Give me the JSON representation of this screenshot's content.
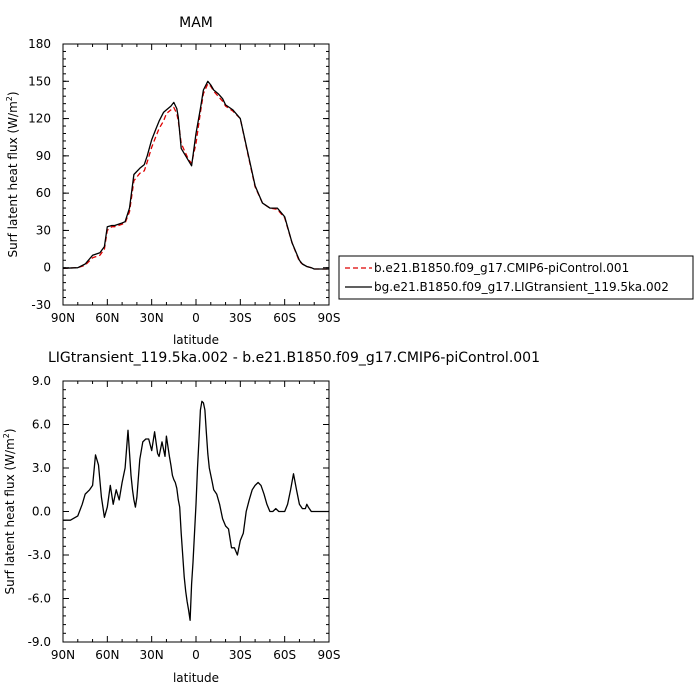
{
  "chart_data": [
    {
      "type": "line",
      "title": "MAM",
      "xlabel": "latitude",
      "ylabel": "Surf latent heat flux (W/m",
      "ylabel_sup": "2",
      "ylabel_close": ")",
      "xlim": [
        90,
        -90
      ],
      "ylim": [
        -30,
        180
      ],
      "xticks": [
        90,
        60,
        30,
        0,
        -30,
        -60,
        -90
      ],
      "xticklabels": [
        "90N",
        "60N",
        "30N",
        "0",
        "30S",
        "60S",
        "90S"
      ],
      "yticks": [
        -30,
        0,
        30,
        60,
        90,
        120,
        150,
        180
      ],
      "yticklabels": [
        "-30",
        "0",
        "30",
        "60",
        "90",
        "120",
        "150",
        "180"
      ],
      "legend_position": "right, outside plot",
      "series": [
        {
          "name": "b.e21.B1850.f09_g17.CMIP6-piControl.001",
          "color": "#dd0000",
          "dash": "dashed",
          "x": [
            90,
            80,
            75,
            70,
            65,
            62,
            60,
            57,
            55,
            50,
            48,
            45,
            42,
            38,
            35,
            33,
            30,
            27,
            25,
            22,
            20,
            17,
            15,
            13,
            12,
            10,
            7,
            5,
            3,
            0,
            -3,
            -5,
            -8,
            -10,
            -12,
            -15,
            -18,
            -20,
            -25,
            -30,
            -35,
            -40,
            -45,
            -50,
            -55,
            -60,
            -65,
            -70,
            -72,
            -75,
            -78,
            -80,
            -85,
            -90
          ],
          "y": [
            -0.5,
            0,
            2,
            8,
            10,
            15,
            30,
            33,
            33,
            35,
            36,
            45,
            70,
            76,
            78,
            85,
            97,
            106,
            112,
            118,
            124,
            127,
            129,
            124,
            118,
            100,
            92,
            87,
            84,
            100,
            125,
            140,
            148,
            146,
            142,
            138,
            134,
            130,
            126,
            120,
            92,
            65,
            52,
            48,
            47,
            40,
            20,
            5,
            3,
            1,
            0,
            -1,
            -1,
            -1
          ]
        },
        {
          "name": "bg.e21.B1850.f09_g17.LIGtransient_119.5ka.002",
          "color": "#000000",
          "dash": "solid",
          "x": [
            90,
            80,
            75,
            70,
            65,
            62,
            60,
            57,
            55,
            50,
            48,
            45,
            42,
            38,
            35,
            33,
            30,
            27,
            25,
            22,
            20,
            17,
            15,
            13,
            12,
            10,
            7,
            5,
            3,
            0,
            -3,
            -5,
            -8,
            -10,
            -12,
            -15,
            -18,
            -20,
            -25,
            -30,
            -35,
            -40,
            -45,
            -50,
            -55,
            -60,
            -65,
            -70,
            -72,
            -75,
            -78,
            -80,
            -85,
            -90
          ],
          "y": [
            -0.5,
            0,
            3,
            10,
            12,
            17,
            33,
            34,
            34,
            36,
            37,
            48,
            75,
            80,
            83,
            90,
            103,
            112,
            118,
            125,
            127,
            130,
            133,
            128,
            121,
            96,
            90,
            86,
            82,
            108,
            128,
            143,
            150,
            147,
            143,
            140,
            136,
            131,
            127,
            120,
            93,
            66,
            52,
            48,
            48,
            41,
            20,
            6,
            3,
            1,
            0,
            -1,
            -1,
            -1
          ]
        }
      ]
    },
    {
      "type": "line",
      "title": "LIGtransient_119.5ka.002 - b.e21.B1850.f09_g17.CMIP6-piControl.001",
      "xlabel": "latitude",
      "ylabel": "Surf latent heat flux (W/m",
      "ylabel_sup": "2",
      "ylabel_close": ")",
      "xlim": [
        90,
        -90
      ],
      "ylim": [
        -9,
        9
      ],
      "xticks": [
        90,
        60,
        30,
        0,
        -30,
        -60,
        -90
      ],
      "xticklabels": [
        "90N",
        "60N",
        "30N",
        "0",
        "30S",
        "60S",
        "90S"
      ],
      "yticks": [
        -9,
        -6,
        -3,
        0,
        3,
        6,
        9
      ],
      "yticklabels": [
        "-9.0",
        "-6.0",
        "-3.0",
        "0.0",
        "3.0",
        "6.0",
        "9.0"
      ],
      "series": [
        {
          "color": "#000000",
          "dash": "solid",
          "x": [
            90,
            85,
            80,
            77,
            75,
            72,
            70,
            68,
            66,
            64,
            62,
            60,
            58,
            56,
            54,
            52,
            50,
            48,
            46,
            44,
            43,
            42,
            41,
            40,
            38,
            36,
            34,
            32,
            30,
            28,
            26,
            25,
            23,
            21,
            20,
            19,
            18,
            17,
            16,
            15,
            14,
            13,
            12,
            11,
            10,
            9,
            8,
            7,
            6,
            5,
            4,
            3,
            2,
            0,
            -1,
            -2,
            -3,
            -4,
            -5,
            -6,
            -7,
            -8,
            -9,
            -10,
            -11,
            -12,
            -14,
            -16,
            -18,
            -20,
            -22,
            -24,
            -26,
            -28,
            -30,
            -32,
            -34,
            -36,
            -38,
            -40,
            -42,
            -44,
            -46,
            -48,
            -50,
            -52,
            -54,
            -56,
            -58,
            -60,
            -62,
            -64,
            -66,
            -68,
            -70,
            -72,
            -74,
            -75,
            -76,
            -78,
            -80,
            -83,
            -85,
            -90
          ],
          "y": [
            -0.6,
            -0.6,
            -0.3,
            0.5,
            1.2,
            1.5,
            1.8,
            3.9,
            3.2,
            1.0,
            -0.4,
            0.3,
            1.8,
            0.5,
            1.5,
            0.8,
            2.0,
            3.0,
            5.6,
            2.5,
            1.5,
            0.8,
            0.3,
            1.0,
            3.6,
            4.8,
            5.0,
            5.0,
            4.2,
            5.5,
            4.0,
            3.8,
            4.8,
            3.8,
            5.2,
            4.5,
            3.8,
            3.2,
            2.5,
            2.2,
            2.0,
            1.6,
            0.8,
            0.3,
            -1.5,
            -3.0,
            -4.5,
            -5.5,
            -6.2,
            -6.8,
            -7.5,
            -5.0,
            -3.5,
            0.5,
            3.0,
            5.0,
            7.0,
            7.6,
            7.5,
            7.0,
            5.5,
            4.0,
            3.0,
            2.5,
            2.0,
            1.5,
            1.2,
            0.5,
            -0.5,
            -1.0,
            -1.2,
            -2.5,
            -2.5,
            -3.0,
            -2.0,
            -1.5,
            0.0,
            0.8,
            1.5,
            1.8,
            2.0,
            1.8,
            1.2,
            0.5,
            0.0,
            0.0,
            0.2,
            0.0,
            0.0,
            0.0,
            0.5,
            1.5,
            2.6,
            1.5,
            0.5,
            0.2,
            0.2,
            0.5,
            0.3,
            0.0,
            0.0,
            0.0,
            0.0,
            0.0
          ]
        }
      ]
    }
  ]
}
